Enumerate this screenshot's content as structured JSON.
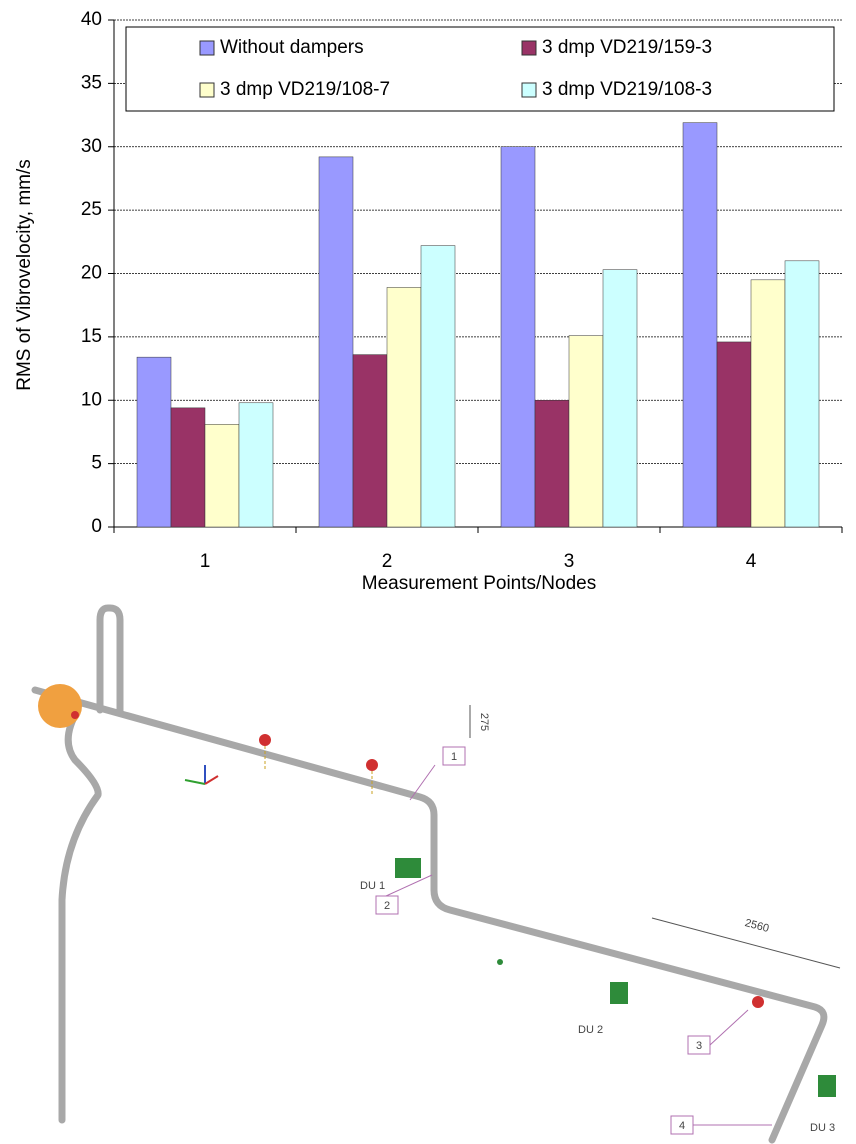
{
  "chart_data": {
    "type": "bar",
    "x_label": "Measurement Points/Nodes",
    "y_label": "RMS  of  Vibrovelocity, mm/s",
    "categories": [
      "1",
      "2",
      "3",
      "4"
    ],
    "series": [
      {
        "name": "Without dampers",
        "color": "#9999ff",
        "values": [
          13.4,
          29.2,
          30.0,
          31.9
        ]
      },
      {
        "name": "3 dmp VD219/159-3",
        "color": "#993366",
        "values": [
          9.4,
          13.6,
          10.0,
          14.6
        ]
      },
      {
        "name": "3 dmp VD219/108-7",
        "color": "#ffffcc",
        "values": [
          8.1,
          18.9,
          15.1,
          19.5
        ]
      },
      {
        "name": "3 dmp VD219/108-3",
        "color": "#ccffff",
        "values": [
          9.8,
          22.2,
          20.3,
          21.0
        ]
      }
    ],
    "ylim": [
      0,
      40
    ],
    "yticks": [
      0,
      5,
      10,
      15,
      20,
      25,
      30,
      35,
      40
    ],
    "grid": true,
    "legend": "top"
  },
  "diagram": {
    "points": [
      "1",
      "2",
      "3",
      "4"
    ],
    "dampers": [
      "DU 1",
      "DU 2",
      "DU 3"
    ],
    "dimensions": [
      "2560",
      "275"
    ]
  }
}
